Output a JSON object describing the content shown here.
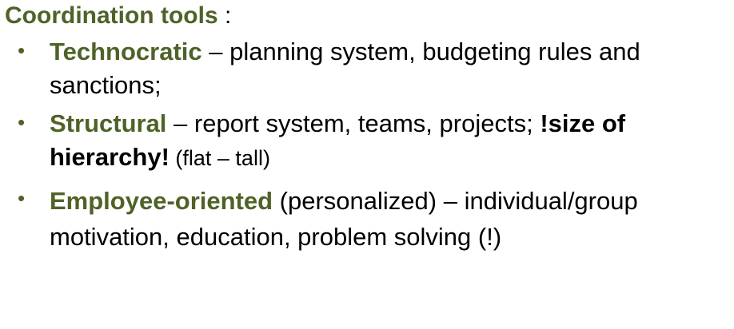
{
  "heading": {
    "title": "Coordination tools",
    "suffix": " :"
  },
  "bullets": [
    {
      "marker": "•",
      "term": "Technocratic",
      "text": " – planning system, budgeting rules and sanctions;"
    },
    {
      "marker": "•",
      "term": "Structural",
      "text": " – report system, teams, projects; ",
      "emphasis": "!size of hierarchy!",
      "tail": " (flat – tall)"
    },
    {
      "marker": "•",
      "term": "Employee-oriented",
      "text": " (personalized) – individual/group  motivation, education, problem solving (!)"
    }
  ],
  "colors": {
    "accent": "#4f6228",
    "text": "#000000",
    "background": "#ffffff"
  }
}
